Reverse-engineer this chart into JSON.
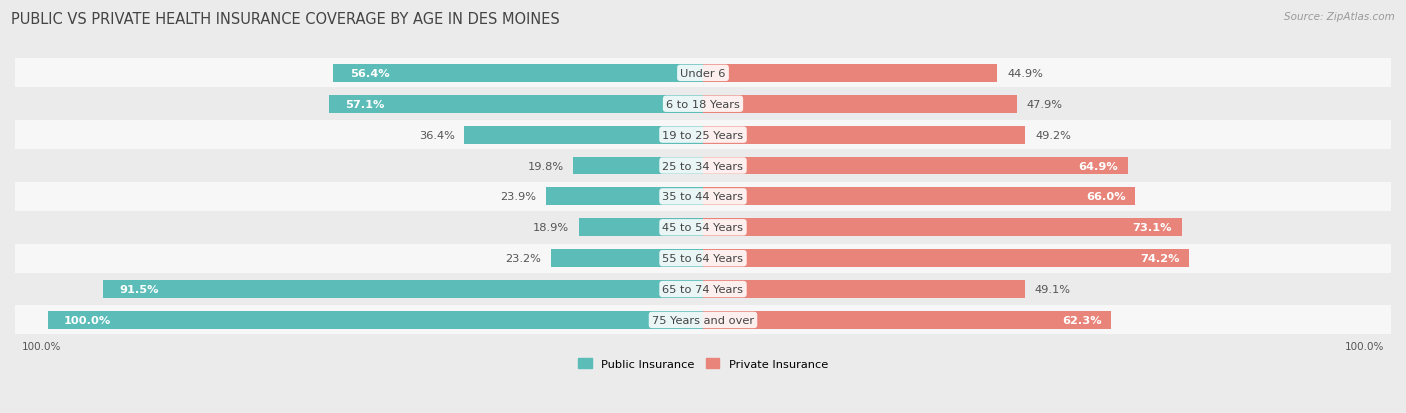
{
  "title": "PUBLIC VS PRIVATE HEALTH INSURANCE COVERAGE BY AGE IN DES MOINES",
  "source": "Source: ZipAtlas.com",
  "categories": [
    "Under 6",
    "6 to 18 Years",
    "19 to 25 Years",
    "25 to 34 Years",
    "35 to 44 Years",
    "45 to 54 Years",
    "55 to 64 Years",
    "65 to 74 Years",
    "75 Years and over"
  ],
  "public_values": [
    56.4,
    57.1,
    36.4,
    19.8,
    23.9,
    18.9,
    23.2,
    91.5,
    100.0
  ],
  "private_values": [
    44.9,
    47.9,
    49.2,
    64.9,
    66.0,
    73.1,
    74.2,
    49.1,
    62.3
  ],
  "public_color": "#5bbcb8",
  "private_color": "#e8847a",
  "background_color": "#ebebeb",
  "row_color_even": "#f7f7f7",
  "row_color_odd": "#ebebeb",
  "legend_public": "Public Insurance",
  "legend_private": "Private Insurance",
  "bar_height": 0.58,
  "title_fontsize": 10.5,
  "label_fontsize": 8.2,
  "category_fontsize": 8.2,
  "axis_label_fontsize": 7.5,
  "source_fontsize": 7.5
}
